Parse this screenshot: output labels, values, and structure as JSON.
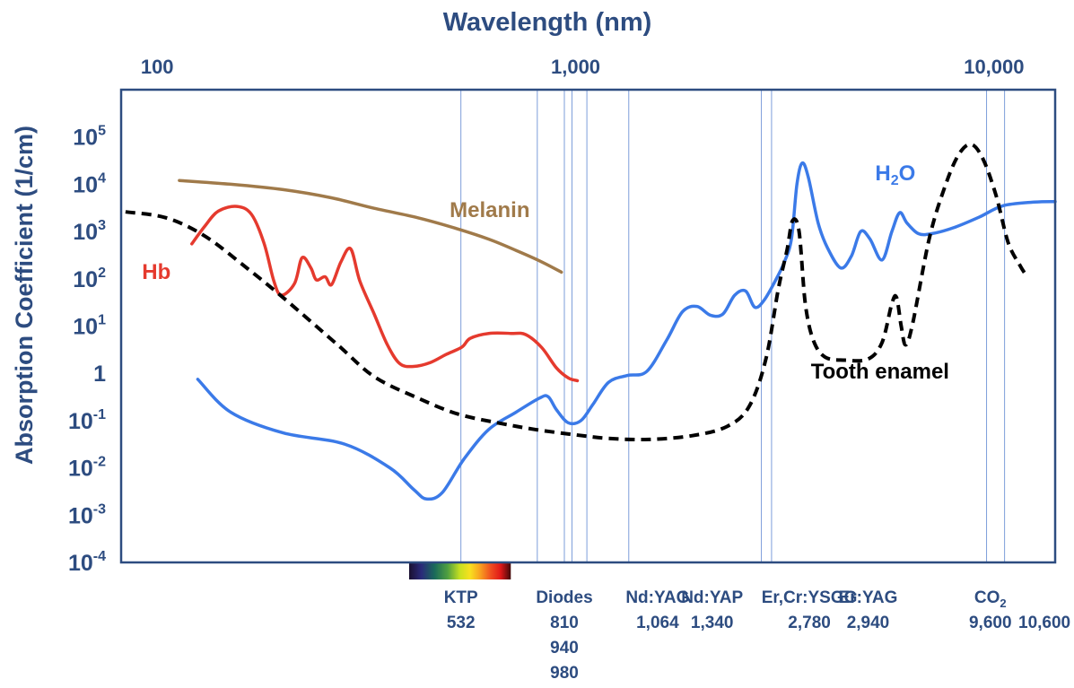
{
  "chart_data": {
    "type": "line",
    "title": "",
    "xlabel": "Wavelength (nm)",
    "ylabel": "Absorption Coefficient (1/cm)",
    "x_scale": "log",
    "y_scale": "log",
    "xlim": [
      82,
      14000
    ],
    "ylim": [
      0.0001,
      1000000
    ],
    "grid": false,
    "x_ticks": [
      {
        "value": 100,
        "label": "100"
      },
      {
        "value": 1000,
        "label": "1,000"
      },
      {
        "value": 10000,
        "label": "10,000"
      }
    ],
    "y_ticks": [
      {
        "value": 100000,
        "base": "10",
        "exp": "5"
      },
      {
        "value": 10000,
        "base": "10",
        "exp": "4"
      },
      {
        "value": 1000,
        "base": "10",
        "exp": "3"
      },
      {
        "value": 100,
        "base": "10",
        "exp": "2"
      },
      {
        "value": 10,
        "base": "10",
        "exp": "1"
      },
      {
        "value": 1,
        "base": "1",
        "exp": ""
      },
      {
        "value": 0.1,
        "base": "10",
        "exp": "-1"
      },
      {
        "value": 0.01,
        "base": "10",
        "exp": "-2"
      },
      {
        "value": 0.001,
        "base": "10",
        "exp": "-3"
      },
      {
        "value": 0.0001,
        "base": "10",
        "exp": "-4"
      }
    ],
    "series": [
      {
        "name": "Melanin",
        "label_base": "Melanin",
        "label_sub": "",
        "color": "#a07a4a",
        "dash": false,
        "label_at": [
          500,
          2000
        ],
        "points": [
          [
            113,
            12000
          ],
          [
            150,
            10000
          ],
          [
            200,
            7700
          ],
          [
            260,
            5200
          ],
          [
            330,
            3100
          ],
          [
            420,
            1950
          ],
          [
            520,
            1150
          ],
          [
            620,
            690
          ],
          [
            720,
            400
          ],
          [
            820,
            240
          ],
          [
            925,
            138
          ]
        ]
      },
      {
        "name": "Hb",
        "label_base": "Hb",
        "label_sub": "",
        "color": "#e53a2e",
        "dash": false,
        "label_at": [
          92,
          100
        ],
        "points": [
          [
            121,
            550
          ],
          [
            130,
            1300
          ],
          [
            140,
            2700
          ],
          [
            155,
            3400
          ],
          [
            168,
            2300
          ],
          [
            180,
            570
          ],
          [
            190,
            90
          ],
          [
            198,
            45
          ],
          [
            213,
            80
          ],
          [
            222,
            280
          ],
          [
            233,
            170
          ],
          [
            240,
            95
          ],
          [
            252,
            110
          ],
          [
            261,
            75
          ],
          [
            275,
            230
          ],
          [
            290,
            430
          ],
          [
            305,
            90
          ],
          [
            330,
            18
          ],
          [
            355,
            4
          ],
          [
            380,
            1.6
          ],
          [
            410,
            1.4
          ],
          [
            450,
            1.7
          ],
          [
            490,
            2.5
          ],
          [
            535,
            3.6
          ],
          [
            560,
            5.5
          ],
          [
            620,
            7
          ],
          [
            700,
            7
          ],
          [
            760,
            6.6
          ],
          [
            830,
            3.5
          ],
          [
            900,
            1.3
          ],
          [
            960,
            0.8
          ],
          [
            1010,
            0.7
          ]
        ]
      },
      {
        "name": "H2O",
        "label_base": "H",
        "label_sub": "2",
        "label_tail": "O",
        "color": "#3b7ae8",
        "dash": false,
        "label_at": [
          5200,
          12000
        ],
        "points": [
          [
            125,
            0.75
          ],
          [
            150,
            0.15
          ],
          [
            200,
            0.055
          ],
          [
            280,
            0.032
          ],
          [
            360,
            0.01
          ],
          [
            410,
            0.0035
          ],
          [
            440,
            0.0022
          ],
          [
            480,
            0.003
          ],
          [
            540,
            0.015
          ],
          [
            620,
            0.065
          ],
          [
            720,
            0.15
          ],
          [
            820,
            0.3
          ],
          [
            860,
            0.32
          ],
          [
            900,
            0.17
          ],
          [
            960,
            0.09
          ],
          [
            1030,
            0.1
          ],
          [
            1100,
            0.22
          ],
          [
            1200,
            0.65
          ],
          [
            1330,
            0.9
          ],
          [
            1480,
            1.1
          ],
          [
            1650,
            5
          ],
          [
            1800,
            20
          ],
          [
            1950,
            26
          ],
          [
            2100,
            17
          ],
          [
            2250,
            18
          ],
          [
            2400,
            45
          ],
          [
            2550,
            55
          ],
          [
            2680,
            25
          ],
          [
            2820,
            35
          ],
          [
            3000,
            90
          ],
          [
            3150,
            220
          ],
          [
            3280,
            700
          ],
          [
            3380,
            10000
          ],
          [
            3480,
            28000
          ],
          [
            3600,
            14000
          ],
          [
            3800,
            1500
          ],
          [
            4000,
            450
          ],
          [
            4300,
            170
          ],
          [
            4560,
            300
          ],
          [
            4800,
            1000
          ],
          [
            5050,
            700
          ],
          [
            5400,
            250
          ],
          [
            5700,
            1000
          ],
          [
            5950,
            2500
          ],
          [
            6200,
            1500
          ],
          [
            6600,
            900
          ],
          [
            7100,
            900
          ],
          [
            8000,
            1200
          ],
          [
            9200,
            2000
          ],
          [
            10500,
            3500
          ],
          [
            12500,
            4200
          ],
          [
            14000,
            4300
          ]
        ]
      },
      {
        "name": "Tooth enamel",
        "label_base": "Tooth enamel",
        "label_sub": "",
        "color": "#000000",
        "dash": true,
        "label_at": [
          3650,
          0.78
        ],
        "points": [
          [
            84,
            2600
          ],
          [
            105,
            1950
          ],
          [
            130,
            800
          ],
          [
            165,
            160
          ],
          [
            200,
            40
          ],
          [
            270,
            4
          ],
          [
            330,
            0.85
          ],
          [
            420,
            0.3
          ],
          [
            520,
            0.14
          ],
          [
            650,
            0.09
          ],
          [
            800,
            0.065
          ],
          [
            1000,
            0.05
          ],
          [
            1200,
            0.042
          ],
          [
            1500,
            0.04
          ],
          [
            1900,
            0.048
          ],
          [
            2300,
            0.075
          ],
          [
            2600,
            0.2
          ],
          [
            2850,
            2
          ],
          [
            3050,
            60
          ],
          [
            3200,
            400
          ],
          [
            3300,
            1700
          ],
          [
            3420,
            1000
          ],
          [
            3540,
            30
          ],
          [
            3700,
            5
          ],
          [
            3950,
            2.2
          ],
          [
            4400,
            1.9
          ],
          [
            5000,
            2
          ],
          [
            5400,
            4.5
          ],
          [
            5700,
            30
          ],
          [
            5850,
            40
          ],
          [
            6000,
            10
          ],
          [
            6150,
            4
          ],
          [
            6400,
            12
          ],
          [
            7000,
            700
          ],
          [
            7600,
            8000
          ],
          [
            8200,
            40000
          ],
          [
            8800,
            70000
          ],
          [
            9400,
            35000
          ],
          [
            10100,
            6000
          ],
          [
            10800,
            600
          ],
          [
            11500,
            200
          ],
          [
            12000,
            110
          ]
        ]
      }
    ],
    "laser_lines": [
      532,
      810,
      940,
      980,
      1064,
      1340,
      2780,
      2940,
      9600,
      10600
    ],
    "laser_labels": [
      {
        "lines": [
          "KTP",
          "532"
        ],
        "at": 532
      },
      {
        "lines": [
          "Diodes",
          "810",
          "940",
          "980"
        ],
        "at": 940
      },
      {
        "lines": [
          "Nd:YAG",
          "1,064"
        ],
        "at": 1570
      },
      {
        "lines": [
          "Nd:YAP",
          "1,340"
        ],
        "at": 2120
      },
      {
        "lines": [
          "Er,Cr:YSGG",
          "2,780"
        ],
        "at": 3620
      },
      {
        "lines": [
          "Er:YAG",
          "2,940"
        ],
        "at": 5000
      },
      {
        "lines": [
          "CO",
          "9,600"
        ],
        "sub": "2",
        "at": 9800
      },
      {
        "lines": [
          "",
          "10,600"
        ],
        "at": 13200
      }
    ],
    "visible_spectrum": {
      "from": 400,
      "to": 700
    }
  }
}
